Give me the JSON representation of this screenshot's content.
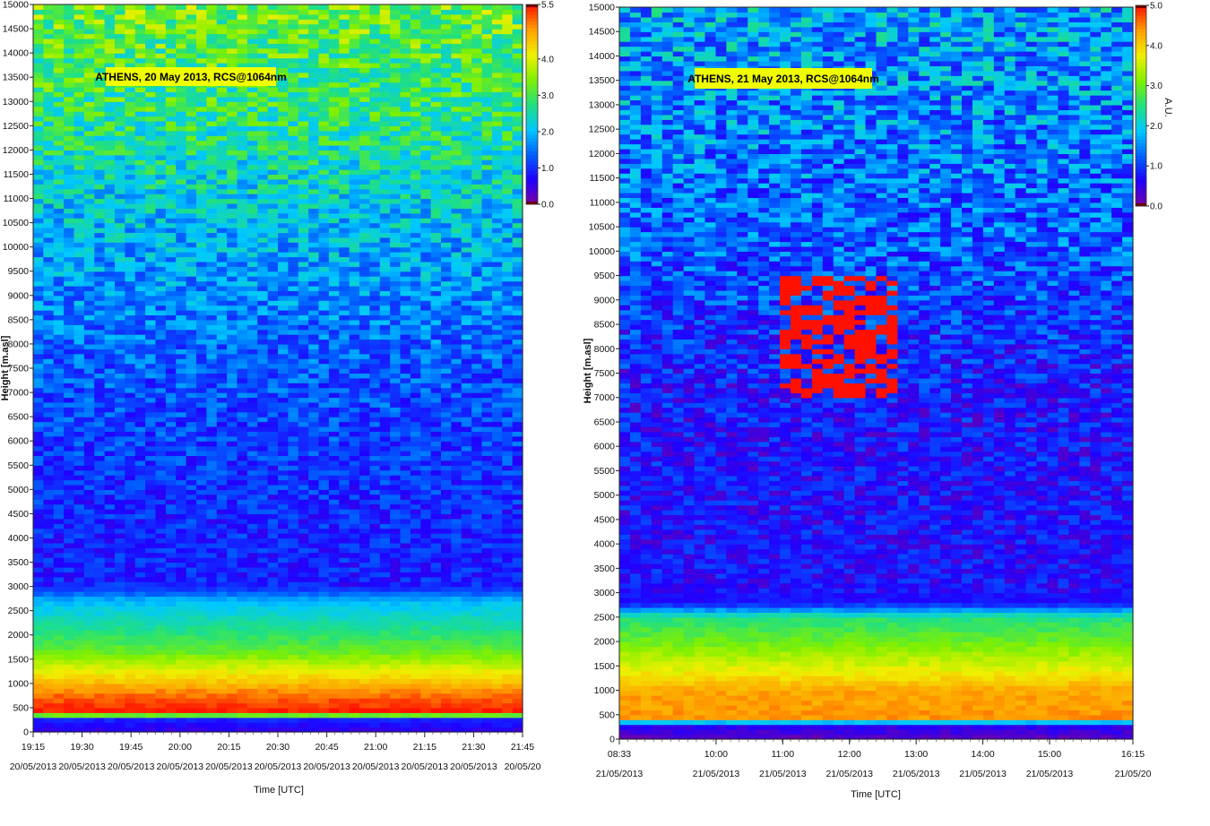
{
  "colormap": [
    "#7a00a0",
    "#2000ff",
    "#0060ff",
    "#00c8ff",
    "#20e080",
    "#80f000",
    "#f0f000",
    "#ffa000",
    "#ff1000"
  ],
  "chart_data": [
    {
      "type": "heatmap",
      "title": "ATHENS, 20 May 2013, RCS@1064nm",
      "xlabel": "Time [UTC]",
      "ylabel": "Height [m.asl]",
      "colorbar_label": "",
      "ylim": [
        0,
        15000
      ],
      "y_ticks": [
        "0",
        "500",
        "1000",
        "1500",
        "2000",
        "2500",
        "3000",
        "3500",
        "4000",
        "4500",
        "5000",
        "5500",
        "6000",
        "6500",
        "7000",
        "7500",
        "8000",
        "8500",
        "9000",
        "9500",
        "10000",
        "10500",
        "11000",
        "11500",
        "12000",
        "12500",
        "13000",
        "13500",
        "14000",
        "14500",
        "15000"
      ],
      "x_ticks": [
        {
          "time": "19:15",
          "date": "20/05/2013"
        },
        {
          "time": "19:30",
          "date": "20/05/2013"
        },
        {
          "time": "19:45",
          "date": "20/05/2013"
        },
        {
          "time": "20:00",
          "date": "20/05/2013"
        },
        {
          "time": "20:15",
          "date": "20/05/2013"
        },
        {
          "time": "20:30",
          "date": "20/05/2013"
        },
        {
          "time": "20:45",
          "date": "20/05/2013"
        },
        {
          "time": "21:00",
          "date": "20/05/2013"
        },
        {
          "time": "21:15",
          "date": "20/05/2013"
        },
        {
          "time": "21:30",
          "date": "20/05/2013"
        },
        {
          "time": "21:45",
          "date": "20/05/20"
        }
      ],
      "colorbar_ticks": [
        "0.0",
        "1.0",
        "2.0",
        "3.0",
        "4.0",
        "5.5"
      ],
      "colorbar_range": [
        0,
        5.5
      ],
      "description": [
        {
          "h": 0,
          "v": 0.5
        },
        {
          "h": 300,
          "v": 1.0
        },
        {
          "h": 400,
          "v": 5.5
        },
        {
          "h": 800,
          "v": 5.0
        },
        {
          "h": 1200,
          "v": 4.2
        },
        {
          "h": 1700,
          "v": 3.2
        },
        {
          "h": 2200,
          "v": 2.6
        },
        {
          "h": 2700,
          "v": 2.0
        },
        {
          "h": 3000,
          "v": 0.9
        },
        {
          "h": 5000,
          "v": 1.0
        },
        {
          "h": 7500,
          "v": 1.3
        },
        {
          "h": 10000,
          "v": 1.9
        },
        {
          "h": 12500,
          "v": 2.7
        },
        {
          "h": 15000,
          "v": 3.3
        }
      ]
    },
    {
      "type": "heatmap",
      "title": "ATHENS, 21 May 2013, RCS@1064nm",
      "xlabel": "Time [UTC]",
      "ylabel": "Height [m.asl]",
      "colorbar_label": "A.U.",
      "ylim": [
        0,
        15000
      ],
      "y_ticks": [
        "0",
        "500",
        "1000",
        "1500",
        "2000",
        "2500",
        "3000",
        "3500",
        "4000",
        "4500",
        "5000",
        "5500",
        "6000",
        "6500",
        "7000",
        "7500",
        "8000",
        "8500",
        "9000",
        "9500",
        "10000",
        "10500",
        "11000",
        "11500",
        "12000",
        "12500",
        "13000",
        "13500",
        "14000",
        "14500",
        "15000"
      ],
      "x_ticks": [
        {
          "time": "08:33",
          "date": "21/05/2013"
        },
        {
          "time": "10:00",
          "date": "21/05/2013"
        },
        {
          "time": "11:00",
          "date": "21/05/2013"
        },
        {
          "time": "12:00",
          "date": "21/05/2013"
        },
        {
          "time": "13:00",
          "date": "21/05/2013"
        },
        {
          "time": "14:00",
          "date": "21/05/2013"
        },
        {
          "time": "15:00",
          "date": "21/05/2013"
        },
        {
          "time": "16:15",
          "date": "21/05/20"
        }
      ],
      "colorbar_ticks": [
        "0.0",
        "1.0",
        "2.0",
        "3.0",
        "4.0",
        "5.0"
      ],
      "colorbar_range": [
        0,
        5.0
      ],
      "description": [
        {
          "h": 0,
          "v": 0.2
        },
        {
          "h": 300,
          "v": 0.6
        },
        {
          "h": 450,
          "v": 4.4
        },
        {
          "h": 1000,
          "v": 4.3
        },
        {
          "h": 1500,
          "v": 3.6
        },
        {
          "h": 2000,
          "v": 3.0
        },
        {
          "h": 2500,
          "v": 2.5
        },
        {
          "h": 2800,
          "v": 0.7
        },
        {
          "h": 7000,
          "v": 0.75
        },
        {
          "h": 10000,
          "v": 1.2
        },
        {
          "h": 15000,
          "v": 1.7
        }
      ],
      "cloud_layer": {
        "time_range": [
          "11:00",
          "12:45"
        ],
        "height_range": [
          7000,
          9500
        ],
        "value": 5.0
      }
    }
  ]
}
